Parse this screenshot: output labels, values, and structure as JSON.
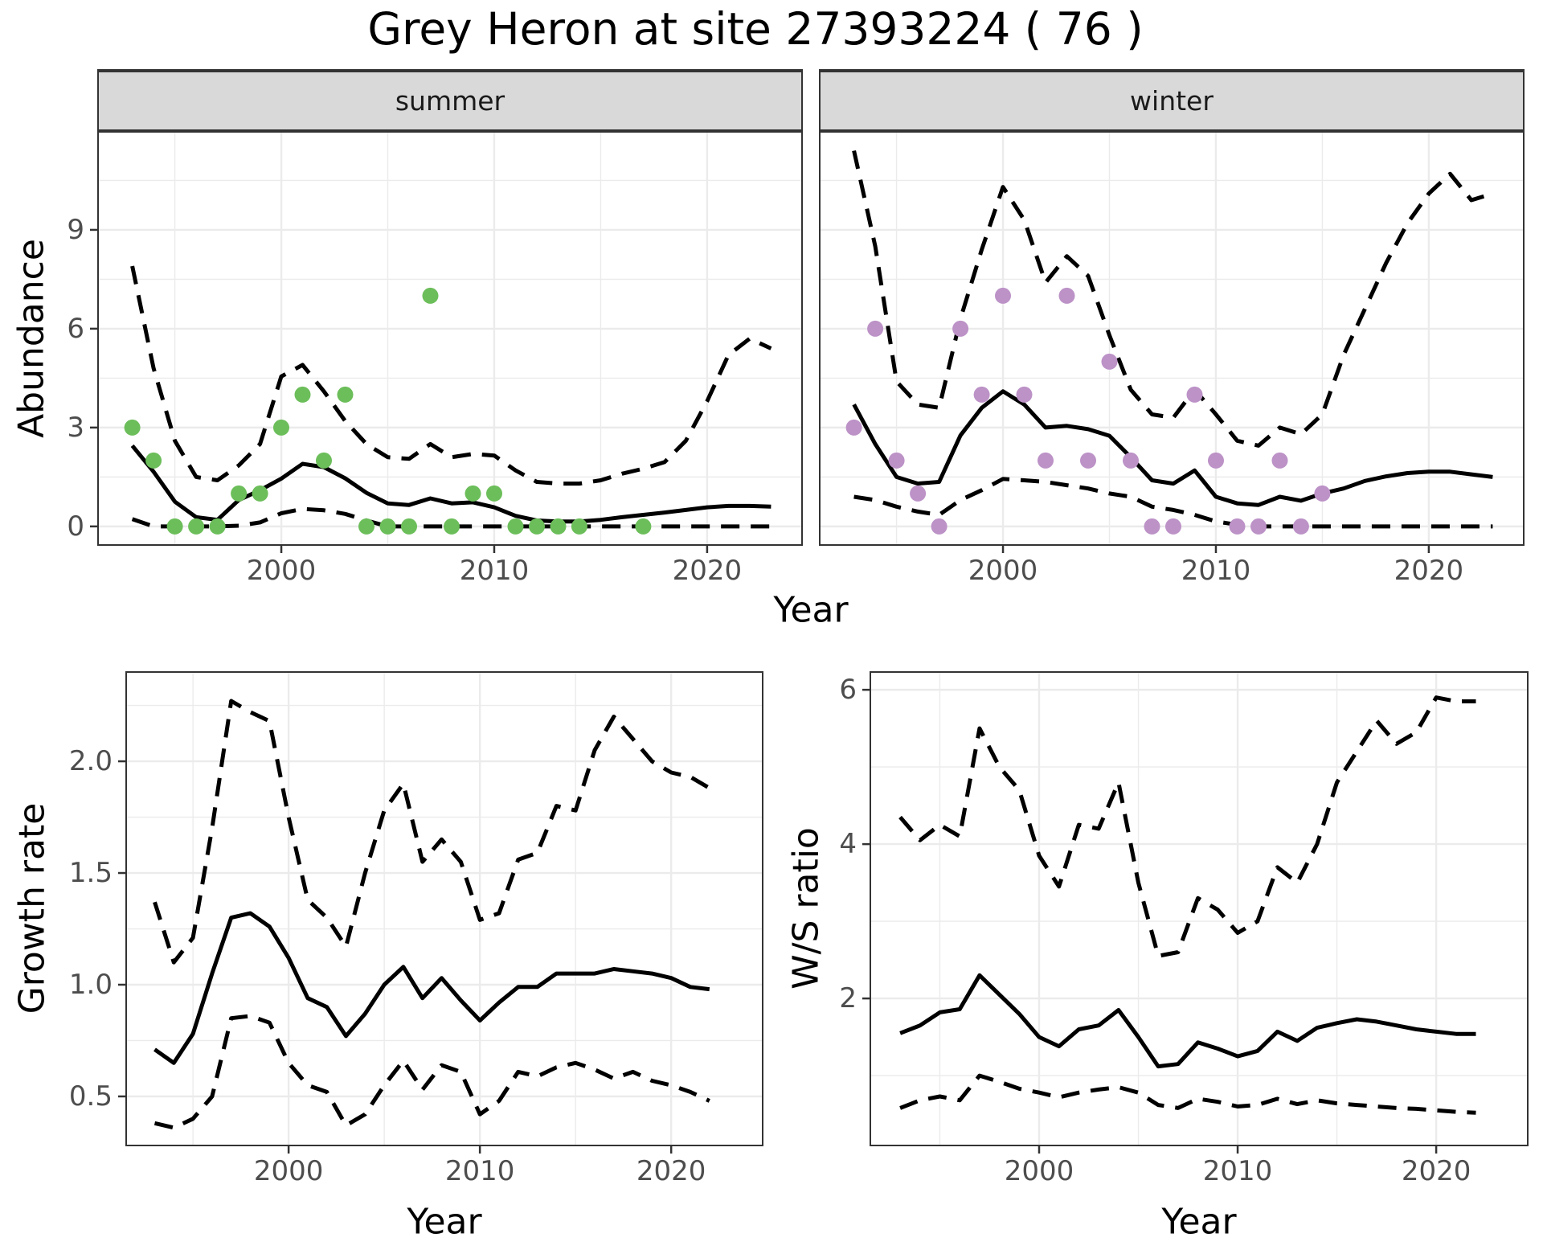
{
  "title": "Grey Heron at site 27393224 ( 76 )",
  "colors": {
    "summer_points": "#6cbe5a",
    "winter_points": "#bc92c7",
    "line": "#000000",
    "grid": "#ebebeb",
    "tick_mark": "#333333",
    "tick_text": "#4d4d4d",
    "strip_bg": "#d9d9d9",
    "strip_border": "#333333"
  },
  "abundance": {
    "ylabel": "Abundance",
    "xlabel": "Year",
    "facets": [
      "summer",
      "winter"
    ]
  },
  "growth": {
    "ylabel": "Growth rate",
    "xlabel": "Year"
  },
  "ws": {
    "ylabel": "W/S ratio",
    "xlabel": "Year"
  },
  "chart_data": [
    {
      "id": "summer",
      "type": "line",
      "facet": "summer",
      "x": [
        1993,
        1994,
        1995,
        1996,
        1997,
        1998,
        1999,
        2000,
        2001,
        2002,
        2003,
        2004,
        2005,
        2006,
        2007,
        2008,
        2009,
        2010,
        2011,
        2012,
        2013,
        2014,
        2015,
        2016,
        2017,
        2018,
        2019,
        2020,
        2021,
        2022,
        2023
      ],
      "axes": {
        "xlim": [
          1991.43,
          2024.42
        ],
        "ylim": [
          -0.54,
          11.95
        ],
        "x_ticks": {
          "values": [
            2000,
            2010,
            2020
          ],
          "labels": [
            "2000",
            "2010",
            "2020"
          ]
        },
        "x_minor": [
          1995,
          2005,
          2015
        ],
        "y_ticks": {
          "values": [
            0,
            3,
            6,
            9
          ],
          "labels": [
            "0",
            "3",
            "6",
            "9"
          ],
          "show": true
        },
        "y_minor": [
          1.5,
          4.5,
          7.5,
          10.5
        ]
      },
      "series": [
        {
          "name": "upper_ci",
          "style": "dashed",
          "values": [
            7.9,
            4.8,
            2.6,
            1.5,
            1.4,
            1.85,
            2.5,
            4.55,
            4.9,
            4.1,
            3.2,
            2.5,
            2.1,
            2.05,
            2.5,
            2.1,
            2.2,
            2.15,
            1.7,
            1.35,
            1.3,
            1.3,
            1.4,
            1.6,
            1.75,
            1.95,
            2.6,
            3.8,
            5.2,
            5.7,
            5.4
          ]
        },
        {
          "name": "lower_ci",
          "style": "dashed",
          "values": [
            0.22,
            0,
            0,
            0,
            0,
            0.02,
            0.12,
            0.4,
            0.53,
            0.49,
            0.38,
            0.18,
            0,
            0,
            0,
            0,
            0,
            0,
            0,
            0,
            0,
            0,
            0,
            0,
            0,
            0,
            0,
            0,
            0,
            0,
            0
          ]
        },
        {
          "name": "median",
          "style": "solid",
          "values": [
            2.45,
            1.66,
            0.75,
            0.28,
            0.2,
            0.8,
            1.1,
            1.45,
            1.9,
            1.8,
            1.46,
            1.02,
            0.7,
            0.65,
            0.85,
            0.7,
            0.73,
            0.58,
            0.32,
            0.18,
            0.15,
            0.15,
            0.2,
            0.28,
            0.35,
            0.42,
            0.5,
            0.58,
            0.62,
            0.62,
            0.6
          ]
        },
        {
          "name": "observed",
          "style": "points",
          "color_key": "summer_points",
          "x": [
            1993,
            1994,
            1995,
            1996,
            1997,
            1998,
            1999,
            2000,
            2001,
            2002,
            2003,
            2004,
            2005,
            2006,
            2007,
            2008,
            2009,
            2010,
            2011,
            2012,
            2013,
            2014,
            2017
          ],
          "values": [
            3,
            2,
            0,
            0,
            0,
            1,
            1,
            3,
            4,
            2,
            4,
            0,
            0,
            0,
            7,
            0,
            1,
            1,
            0,
            0,
            0,
            0,
            0
          ]
        }
      ]
    },
    {
      "id": "winter",
      "type": "line",
      "facet": "winter",
      "x": [
        1993,
        1994,
        1995,
        1996,
        1997,
        1998,
        1999,
        2000,
        2001,
        2002,
        2003,
        2004,
        2005,
        2006,
        2007,
        2008,
        2009,
        2010,
        2011,
        2012,
        2013,
        2014,
        2015,
        2016,
        2017,
        2018,
        2019,
        2020,
        2021,
        2022,
        2023
      ],
      "axes": {
        "xlim": [
          1991.43,
          2024.42
        ],
        "ylim": [
          -0.54,
          11.95
        ],
        "x_ticks": {
          "values": [
            2000,
            2010,
            2020
          ],
          "labels": [
            "2000",
            "2010",
            "2020"
          ]
        },
        "x_minor": [
          1995,
          2005,
          2015
        ],
        "y_ticks": {
          "values": [
            0,
            3,
            6,
            9
          ],
          "labels": [
            "0",
            "3",
            "6",
            "9"
          ],
          "show": false
        },
        "y_minor": [
          1.5,
          4.5,
          7.5,
          10.5
        ]
      },
      "series": [
        {
          "name": "upper_ci",
          "style": "dashed",
          "values": [
            11.4,
            8.5,
            4.4,
            3.7,
            3.6,
            6.3,
            8.4,
            10.3,
            9.3,
            7.4,
            8.2,
            7.6,
            5.8,
            4.15,
            3.4,
            3.3,
            4.15,
            3.4,
            2.6,
            2.45,
            3.0,
            2.8,
            3.4,
            5.2,
            6.6,
            8.0,
            9.2,
            10.1,
            10.7,
            9.9,
            10.1
          ]
        },
        {
          "name": "lower_ci",
          "style": "dashed",
          "values": [
            0.9,
            0.8,
            0.6,
            0.45,
            0.35,
            0.8,
            1.1,
            1.44,
            1.4,
            1.35,
            1.25,
            1.15,
            1.0,
            0.9,
            0.6,
            0.5,
            0.35,
            0.15,
            0.05,
            0,
            0,
            0,
            0,
            0,
            0,
            0,
            0,
            0,
            0,
            0,
            0
          ]
        },
        {
          "name": "median",
          "style": "solid",
          "values": [
            3.7,
            2.5,
            1.5,
            1.3,
            1.35,
            2.76,
            3.6,
            4.1,
            3.7,
            3.0,
            3.05,
            2.95,
            2.75,
            2.1,
            1.4,
            1.3,
            1.7,
            0.9,
            0.7,
            0.65,
            0.9,
            0.78,
            1.0,
            1.15,
            1.38,
            1.52,
            1.62,
            1.66,
            1.66,
            1.58,
            1.5
          ]
        },
        {
          "name": "observed",
          "style": "points",
          "color_key": "winter_points",
          "x": [
            1993,
            1994,
            1995,
            1996,
            1997,
            1998,
            1999,
            2000,
            2001,
            2002,
            2003,
            2004,
            2005,
            2006,
            2007,
            2008,
            2009,
            2010,
            2011,
            2012,
            2013,
            2014,
            2015
          ],
          "values": [
            3,
            6,
            2,
            1,
            0,
            6,
            4,
            7,
            4,
            2,
            7,
            2,
            5,
            2,
            0,
            0,
            4,
            2,
            0,
            0,
            2,
            0,
            1
          ]
        }
      ]
    },
    {
      "id": "growth",
      "type": "line",
      "facet": null,
      "x": [
        1993,
        1994,
        1995,
        1996,
        1997,
        1998,
        1999,
        2000,
        2001,
        2002,
        2003,
        2004,
        2005,
        2006,
        2007,
        2008,
        2009,
        2010,
        2011,
        2012,
        2013,
        2014,
        2015,
        2016,
        2017,
        2018,
        2019,
        2020,
        2021,
        2022
      ],
      "axes": {
        "xlim": [
          1991.55,
          2024.74
        ],
        "ylim": [
          0.284,
          2.396
        ],
        "x_ticks": {
          "values": [
            2000,
            2010,
            2020
          ],
          "labels": [
            "2000",
            "2010",
            "2020"
          ]
        },
        "x_minor": [
          1995,
          2005,
          2015
        ],
        "y_ticks": {
          "values": [
            0.5,
            1.0,
            1.5,
            2.0
          ],
          "labels": [
            "0.5",
            "1.0",
            "1.5",
            "2.0"
          ],
          "show": true
        },
        "y_minor": [
          0.75,
          1.25,
          1.75,
          2.25
        ]
      },
      "series": [
        {
          "name": "upper_ci",
          "style": "dashed",
          "values": [
            1.37,
            1.1,
            1.21,
            1.7,
            2.27,
            2.22,
            2.18,
            1.75,
            1.38,
            1.3,
            1.17,
            1.5,
            1.78,
            1.9,
            1.55,
            1.65,
            1.55,
            1.29,
            1.32,
            1.56,
            1.59,
            1.8,
            1.78,
            2.05,
            2.2,
            2.1,
            2.0,
            1.95,
            1.93,
            1.88
          ]
        },
        {
          "name": "lower_ci",
          "style": "dashed",
          "values": [
            0.38,
            0.36,
            0.4,
            0.5,
            0.85,
            0.86,
            0.83,
            0.65,
            0.55,
            0.52,
            0.37,
            0.42,
            0.55,
            0.66,
            0.53,
            0.64,
            0.61,
            0.42,
            0.48,
            0.61,
            0.59,
            0.63,
            0.65,
            0.62,
            0.58,
            0.61,
            0.57,
            0.55,
            0.52,
            0.48
          ]
        },
        {
          "name": "median",
          "style": "solid",
          "values": [
            0.71,
            0.65,
            0.78,
            1.05,
            1.3,
            1.32,
            1.26,
            1.12,
            0.94,
            0.9,
            0.77,
            0.87,
            1.0,
            1.08,
            0.94,
            1.03,
            0.93,
            0.84,
            0.92,
            0.99,
            0.99,
            1.05,
            1.05,
            1.05,
            1.07,
            1.06,
            1.05,
            1.03,
            0.99,
            0.98
          ]
        }
      ]
    },
    {
      "id": "ws",
      "type": "line",
      "facet": null,
      "x": [
        1993,
        1994,
        1995,
        1996,
        1997,
        1998,
        1999,
        2000,
        2001,
        2002,
        2003,
        2004,
        2005,
        2006,
        2007,
        2008,
        2009,
        2010,
        2011,
        2012,
        2013,
        2014,
        2015,
        2016,
        2017,
        2018,
        2019,
        2020,
        2021,
        2022
      ],
      "axes": {
        "xlim": [
          1991.54,
          2024.57
        ],
        "ylim": [
          0.105,
          6.22
        ],
        "x_ticks": {
          "values": [
            2000,
            2010,
            2020
          ],
          "labels": [
            "2000",
            "2010",
            "2020"
          ]
        },
        "x_minor": [
          1995,
          2005,
          2015
        ],
        "y_ticks": {
          "values": [
            2,
            4,
            6
          ],
          "labels": [
            "2",
            "4",
            "6"
          ],
          "show": true
        },
        "y_minor": [
          1,
          3,
          5
        ]
      },
      "series": [
        {
          "name": "upper_ci",
          "style": "dashed",
          "values": [
            4.35,
            4.05,
            4.25,
            4.1,
            5.5,
            5.0,
            4.7,
            3.85,
            3.45,
            4.25,
            4.2,
            4.8,
            3.5,
            2.55,
            2.6,
            3.3,
            3.15,
            2.85,
            3.0,
            3.7,
            3.5,
            4.0,
            4.8,
            5.2,
            5.6,
            5.3,
            5.45,
            5.9,
            5.85,
            5.85
          ]
        },
        {
          "name": "lower_ci",
          "style": "dashed",
          "values": [
            0.58,
            0.68,
            0.73,
            0.68,
            1.0,
            0.92,
            0.83,
            0.78,
            0.72,
            0.78,
            0.82,
            0.85,
            0.78,
            0.62,
            0.58,
            0.7,
            0.66,
            0.6,
            0.62,
            0.7,
            0.63,
            0.68,
            0.64,
            0.62,
            0.6,
            0.58,
            0.57,
            0.55,
            0.53,
            0.52
          ]
        },
        {
          "name": "median",
          "style": "solid",
          "values": [
            1.55,
            1.65,
            1.82,
            1.86,
            2.3,
            2.05,
            1.8,
            1.5,
            1.38,
            1.6,
            1.65,
            1.85,
            1.5,
            1.12,
            1.15,
            1.43,
            1.35,
            1.25,
            1.32,
            1.57,
            1.45,
            1.62,
            1.68,
            1.73,
            1.7,
            1.65,
            1.6,
            1.57,
            1.54,
            1.54
          ]
        }
      ]
    }
  ]
}
